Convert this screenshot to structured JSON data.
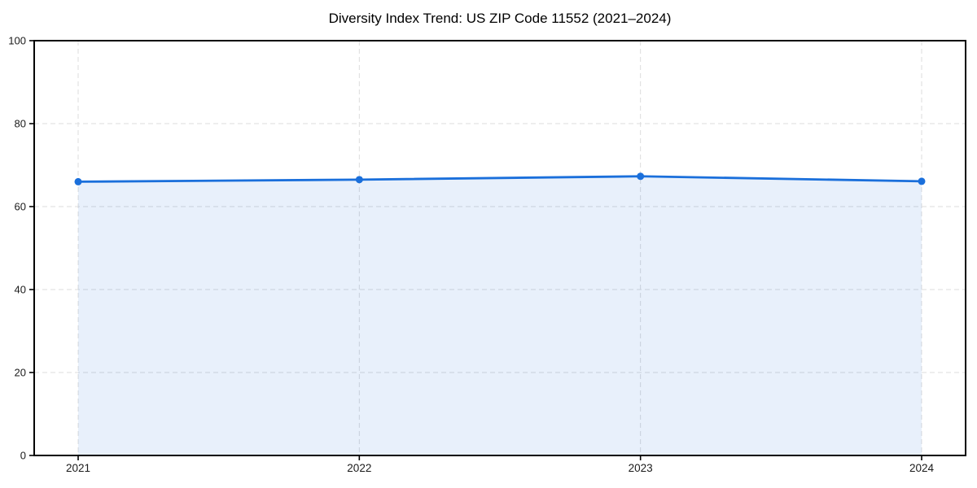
{
  "chart_data": {
    "type": "line",
    "title": "Diversity Index Trend: US ZIP Code 11552 (2021–2024)",
    "categories": [
      "2021",
      "2022",
      "2023",
      "2024"
    ],
    "values": [
      66.0,
      66.5,
      67.3,
      66.1
    ],
    "series_name": "Diversity Index",
    "xlabel": "",
    "ylabel": "",
    "ylim": [
      0,
      100
    ],
    "yticks": [
      0,
      20,
      40,
      60,
      80,
      100
    ],
    "grid": "dashed-both-axes",
    "legend": "none",
    "area_fill": true,
    "markers": "circle",
    "colors": {
      "line": "#1a6fdb",
      "marker": "#1a6fdb",
      "area": "rgba(26,111,219,0.10)",
      "grid": "#dcdcdc",
      "axis": "#000000",
      "tick_label": "#1a1a1a",
      "title": "#000000",
      "background": "#ffffff"
    }
  }
}
